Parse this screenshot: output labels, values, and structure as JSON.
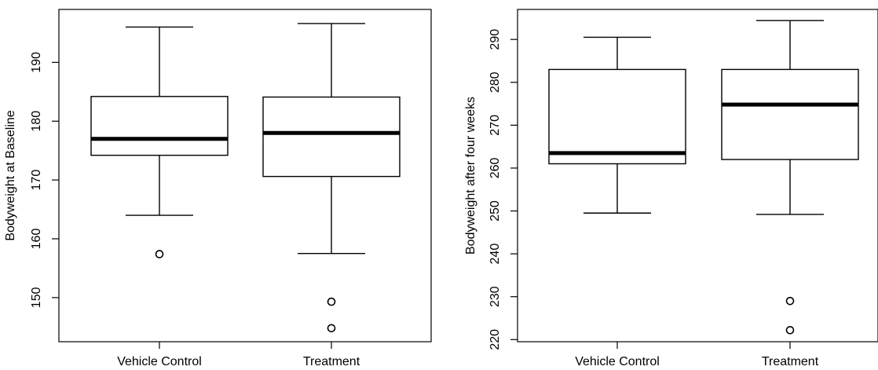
{
  "chart_data": [
    {
      "type": "boxplot",
      "title": "",
      "xlabel": "",
      "ylabel": "Bodyweight at Baseline",
      "ylim": [
        142.5,
        199
      ],
      "yticks": [
        150,
        160,
        170,
        180,
        190
      ],
      "ytick_labels": [
        "150",
        "160",
        "170",
        "180",
        "190"
      ],
      "categories": [
        "Vehicle Control",
        "Treatment"
      ],
      "grid": false,
      "boxes": [
        {
          "category": "Vehicle Control",
          "whisker_low": 164,
          "q1": 174.2,
          "median": 177,
          "q3": 184.2,
          "whisker_high": 196,
          "outliers": [
            157.4
          ]
        },
        {
          "category": "Treatment",
          "whisker_low": 157.5,
          "q1": 170.6,
          "median": 178,
          "q3": 184.1,
          "whisker_high": 196.6,
          "outliers": [
            149.3,
            144.8
          ]
        }
      ]
    },
    {
      "type": "boxplot",
      "title": "",
      "xlabel": "",
      "ylabel": "Bodyweight after four weeks",
      "ylim": [
        219.5,
        297
      ],
      "yticks": [
        220,
        230,
        240,
        250,
        260,
        270,
        280,
        290
      ],
      "ytick_labels": [
        "220",
        "230",
        "240",
        "250",
        "260",
        "270",
        "280",
        "290"
      ],
      "categories": [
        "Vehicle Control",
        "Treatment"
      ],
      "grid": false,
      "boxes": [
        {
          "category": "Vehicle Control",
          "whisker_low": 249.5,
          "q1": 261,
          "median": 263.5,
          "q3": 283,
          "whisker_high": 290.5,
          "outliers": []
        },
        {
          "category": "Treatment",
          "whisker_low": 249.2,
          "q1": 262,
          "median": 274.8,
          "q3": 283,
          "whisker_high": 294.4,
          "outliers": [
            229,
            222.2
          ]
        }
      ]
    }
  ]
}
